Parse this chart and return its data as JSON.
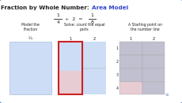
{
  "title_black": "Fraction by Whole Number: ",
  "title_blue": "Area Model",
  "bg_color": "#4a7bc4",
  "card_color": "#ffffff",
  "panel1_title": "Model the\nFraction",
  "panel2_title": "Solve: count the equal\nparts",
  "panel3_title": "A Starting point on\nthe number line",
  "panel1_fill": "#ccddf5",
  "panel2_fill_main": "#ccddf5",
  "panel2_fill_shade": "#e8ccd4",
  "panel2_border_color": "#cc2222",
  "panel3_fill_gray": "#c0c0d0",
  "panel3_fill_pink": "#e8ccd4",
  "text_dark": "#222222",
  "text_blue": "#3344cc",
  "grid_line": "#aaaaaa"
}
